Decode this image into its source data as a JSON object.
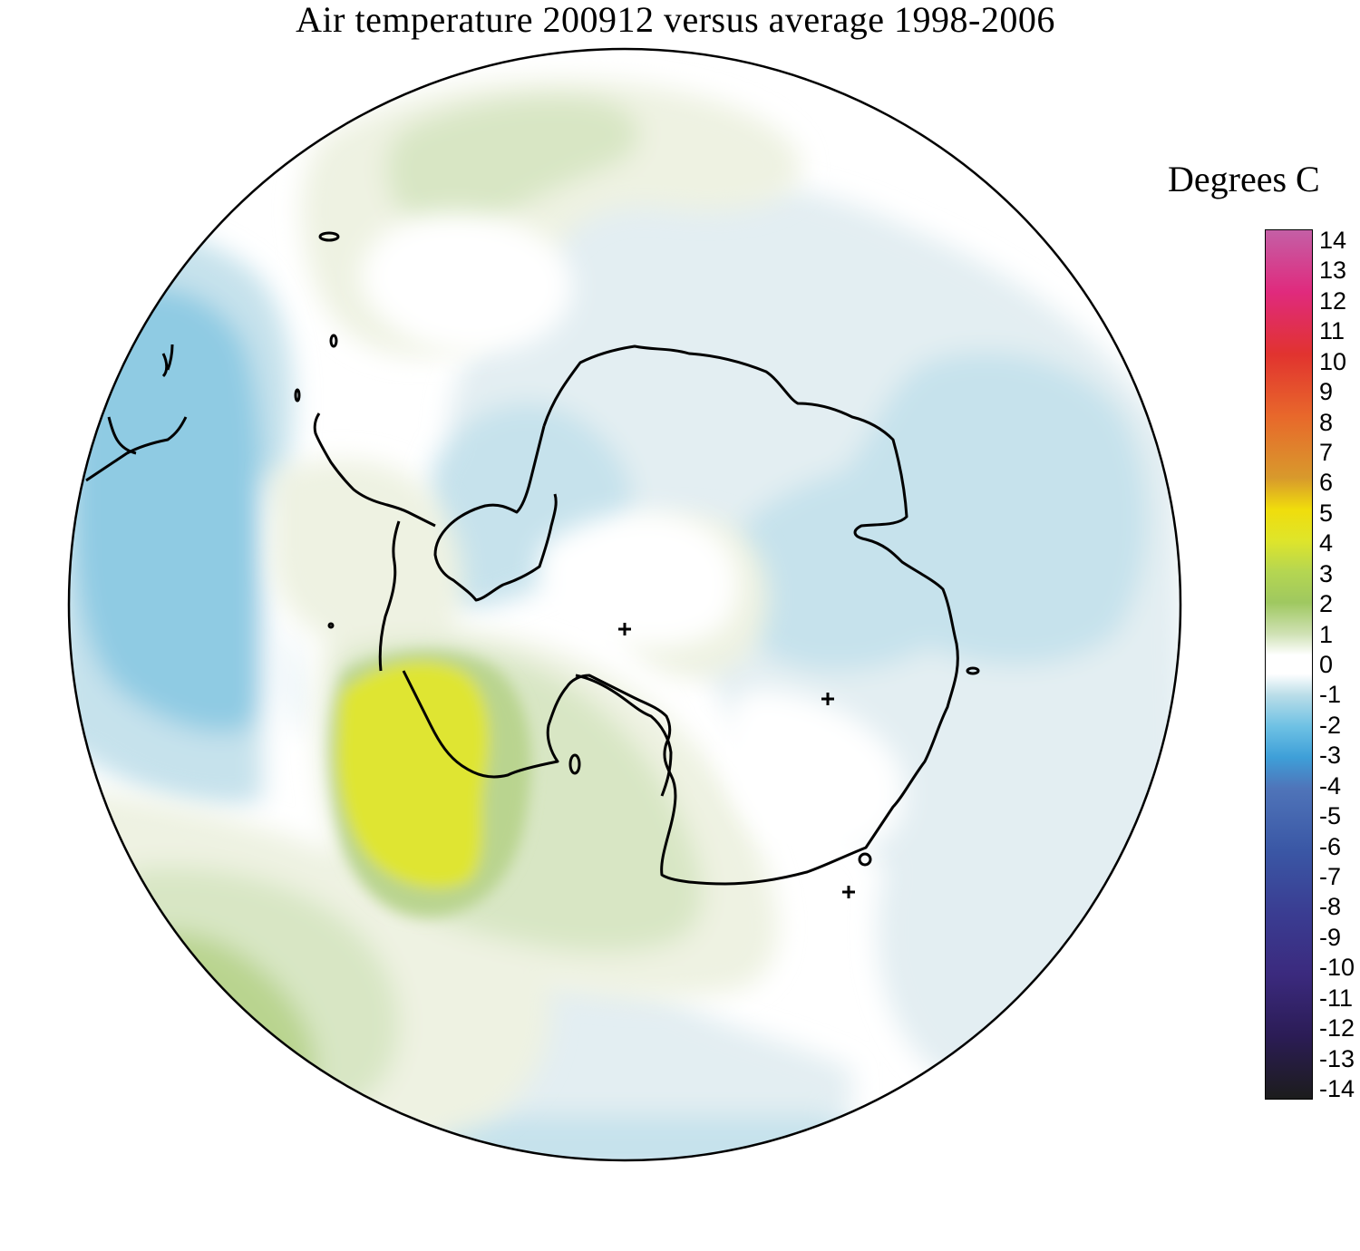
{
  "title": "Air temperature 200912 versus average 1998-2006",
  "legend": {
    "title": "Degrees C",
    "ticks": [
      "14",
      "13",
      "12",
      "11",
      "10",
      "9",
      "8",
      "7",
      "6",
      "5",
      "4",
      "3",
      "2",
      "1",
      "0",
      "-1",
      "-2",
      "-3",
      "-4",
      "-5",
      "-6",
      "-7",
      "-8",
      "-9",
      "-10",
      "-11",
      "-12",
      "-13",
      "-14"
    ],
    "colors": [
      {
        "value": 14,
        "color": "#c45fa6"
      },
      {
        "value": 12,
        "color": "#e02a7d"
      },
      {
        "value": 10,
        "color": "#e1332f"
      },
      {
        "value": 8,
        "color": "#e8682b"
      },
      {
        "value": 6,
        "color": "#d89a2c"
      },
      {
        "value": 5,
        "color": "#f0dd0c"
      },
      {
        "value": 4,
        "color": "#dfe52a"
      },
      {
        "value": 3,
        "color": "#b5d651"
      },
      {
        "value": 2,
        "color": "#9fc860"
      },
      {
        "value": 1,
        "color": "#cfe1b3"
      },
      {
        "value": 0.3,
        "color": "#ffffff"
      },
      {
        "value": -0.3,
        "color": "#ffffff"
      },
      {
        "value": -1,
        "color": "#b9dde8"
      },
      {
        "value": -2,
        "color": "#6ec1e4"
      },
      {
        "value": -3,
        "color": "#3e9fd8"
      },
      {
        "value": -4,
        "color": "#4f74b9"
      },
      {
        "value": -6,
        "color": "#3a57a5"
      },
      {
        "value": -8,
        "color": "#3a3d92"
      },
      {
        "value": -10,
        "color": "#3b2a7e"
      },
      {
        "value": -12,
        "color": "#2b1c55"
      },
      {
        "value": -14,
        "color": "#1c1c1c"
      }
    ]
  },
  "map": {
    "projection": "south polar stereographic",
    "background": "#ffffff",
    "region_colors": {
      "neutral": "#ffffff",
      "slight_warm": "#eef2e2",
      "warm_1": "#d8e6c4",
      "warm_2": "#b9d48f",
      "warm_4": "#dfe532",
      "slight_cool": "#e3eef2",
      "cool_1": "#c6e2ec",
      "cool_2": "#8fcbe3"
    }
  }
}
